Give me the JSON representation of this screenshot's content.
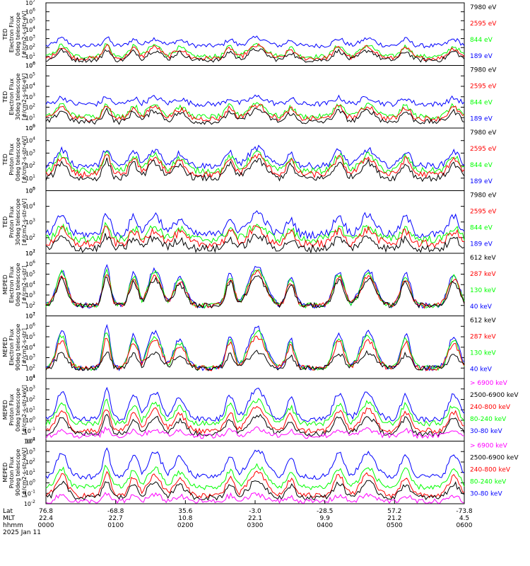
{
  "colors": {
    "black": "#000000",
    "red": "#ff0000",
    "green": "#00ff00",
    "blue": "#0000ff",
    "magenta": "#ff00ff"
  },
  "chart_data": [
    {
      "type": "line",
      "ylabel_lines": [
        "TED",
        "Electron Flux",
        "0deg telescope",
        "[#/cm2-s-str-eV]"
      ],
      "log_range": [
        0,
        7
      ],
      "tick_exponents": [
        0,
        1,
        2,
        3,
        4,
        5,
        6,
        7
      ],
      "legend": [
        {
          "label": "7980 eV",
          "color": "#000000"
        },
        {
          "label": "2595 eV",
          "color": "#ff0000"
        },
        {
          "label": "844 eV",
          "color": "#00ff00"
        },
        {
          "label": "189 eV",
          "color": "#0000ff"
        }
      ],
      "series_levels": [
        {
          "color": "#0000ff",
          "base": 2.2,
          "peak": 3.1
        },
        {
          "color": "#00ff00",
          "base": 1.0,
          "peak": 2.4
        },
        {
          "color": "#ff0000",
          "base": 0.8,
          "peak": 2.2
        },
        {
          "color": "#000000",
          "base": 0.6,
          "peak": 1.8
        }
      ]
    },
    {
      "type": "line",
      "ylabel_lines": [
        "TED",
        "Electron Flux",
        "30deg telescope",
        "[#/cm2-s-str-eV]"
      ],
      "log_range": [
        0,
        6
      ],
      "tick_exponents": [
        0,
        1,
        2,
        3,
        4,
        5,
        6
      ],
      "legend": [
        {
          "label": "7980 eV",
          "color": "#000000"
        },
        {
          "label": "2595 eV",
          "color": "#ff0000"
        },
        {
          "label": "844 eV",
          "color": "#00ff00"
        },
        {
          "label": "189 eV",
          "color": "#0000ff"
        }
      ],
      "series_levels": [
        {
          "color": "#0000ff",
          "base": 2.3,
          "peak": 3.0
        },
        {
          "color": "#00ff00",
          "base": 1.1,
          "peak": 2.4
        },
        {
          "color": "#ff0000",
          "base": 0.9,
          "peak": 2.2
        },
        {
          "color": "#000000",
          "base": 0.6,
          "peak": 1.8
        }
      ]
    },
    {
      "type": "line",
      "ylabel_lines": [
        "TED",
        "Proton Flux",
        "0deg telescope",
        "[#/cm2-s-str-eV]"
      ],
      "log_range": [
        0,
        5
      ],
      "tick_exponents": [
        0,
        1,
        2,
        3,
        4,
        5
      ],
      "legend": [
        {
          "label": "7980 eV",
          "color": "#000000"
        },
        {
          "label": "2595 eV",
          "color": "#ff0000"
        },
        {
          "label": "844 eV",
          "color": "#00ff00"
        },
        {
          "label": "189 eV",
          "color": "#0000ff"
        }
      ],
      "series_levels": [
        {
          "color": "#0000ff",
          "base": 2.0,
          "peak": 3.4
        },
        {
          "color": "#00ff00",
          "base": 1.6,
          "peak": 3.0
        },
        {
          "color": "#ff0000",
          "base": 1.3,
          "peak": 2.8
        },
        {
          "color": "#000000",
          "base": 1.0,
          "peak": 2.4
        }
      ]
    },
    {
      "type": "line",
      "ylabel_lines": [
        "TED",
        "Proton Flux",
        "30deg telescope",
        "[#/cm2-s-str-eV]"
      ],
      "log_range": [
        1,
        5
      ],
      "tick_exponents": [
        1,
        2,
        3,
        4,
        5
      ],
      "legend": [
        {
          "label": "7980 eV",
          "color": "#000000"
        },
        {
          "label": "2595 eV",
          "color": "#ff0000"
        },
        {
          "label": "844 eV",
          "color": "#00ff00"
        },
        {
          "label": "189 eV",
          "color": "#0000ff"
        }
      ],
      "series_levels": [
        {
          "color": "#0000ff",
          "base": 2.2,
          "peak": 3.6
        },
        {
          "color": "#00ff00",
          "base": 1.9,
          "peak": 2.8
        },
        {
          "color": "#ff0000",
          "base": 1.6,
          "peak": 2.6
        },
        {
          "color": "#000000",
          "base": 1.3,
          "peak": 2.1
        }
      ]
    },
    {
      "type": "line",
      "ylabel_lines": [
        "MEPED",
        "Electron Flux",
        "0deg telescope",
        "[#/cm2-s-str]"
      ],
      "log_range": [
        1,
        7
      ],
      "tick_exponents": [
        1,
        2,
        3,
        4,
        5,
        6,
        7
      ],
      "legend": [
        {
          "label": "612 keV",
          "color": "#000000"
        },
        {
          "label": "287 keV",
          "color": "#ff0000"
        },
        {
          "label": "130 keV",
          "color": "#00ff00"
        },
        {
          "label": "40 keV",
          "color": "#0000ff"
        }
      ],
      "series_levels": [
        {
          "color": "#0000ff",
          "base": 2.0,
          "peak": 5.8
        },
        {
          "color": "#00ff00",
          "base": 2.0,
          "peak": 5.5
        },
        {
          "color": "#ff0000",
          "base": 2.0,
          "peak": 5.2
        },
        {
          "color": "#000000",
          "base": 2.0,
          "peak": 4.8
        }
      ]
    },
    {
      "type": "line",
      "ylabel_lines": [
        "MEPED",
        "Electron Flux",
        "90deg telescope",
        "[#/cm2-s-str]"
      ],
      "log_range": [
        1,
        7
      ],
      "tick_exponents": [
        1,
        2,
        3,
        4,
        5,
        6,
        7
      ],
      "legend": [
        {
          "label": "612 keV",
          "color": "#000000"
        },
        {
          "label": "287 keV",
          "color": "#ff0000"
        },
        {
          "label": "130 keV",
          "color": "#00ff00"
        },
        {
          "label": "40 keV",
          "color": "#0000ff"
        }
      ],
      "series_levels": [
        {
          "color": "#0000ff",
          "base": 2.0,
          "peak": 5.9
        },
        {
          "color": "#00ff00",
          "base": 2.0,
          "peak": 5.5
        },
        {
          "color": "#ff0000",
          "base": 2.0,
          "peak": 5.0
        },
        {
          "color": "#000000",
          "base": 2.0,
          "peak": 3.6
        }
      ]
    },
    {
      "type": "line",
      "ylabel_lines": [
        "MEPED",
        "Proton Flux",
        "0deg telescope",
        "[#/cm2-s-str-keV]"
      ],
      "log_range": [
        -2,
        4
      ],
      "tick_exponents": [
        -2,
        -1,
        0,
        1,
        2,
        3,
        4
      ],
      "legend": [
        {
          "label": "> 6900 keV",
          "color": "#ff00ff"
        },
        {
          "label": "2500-6900 keV",
          "color": "#000000"
        },
        {
          "label": "240-800 keV",
          "color": "#ff0000"
        },
        {
          "label": "80-240 keV",
          "color": "#00ff00"
        },
        {
          "label": "30-80 keV",
          "color": "#0000ff"
        }
      ],
      "series_levels": [
        {
          "color": "#0000ff",
          "base": 0.1,
          "peak": 3.0
        },
        {
          "color": "#00ff00",
          "base": -0.3,
          "peak": 1.9
        },
        {
          "color": "#ff0000",
          "base": -1.0,
          "peak": 1.2
        },
        {
          "color": "#000000",
          "base": -1.3,
          "peak": 0.5
        },
        {
          "color": "#ff00ff",
          "base": -1.5,
          "peak": -0.8
        }
      ]
    },
    {
      "type": "line",
      "ylabel_lines": [
        "MEPED",
        "Proton Flux",
        "90deg telescope",
        "[#/cm2-s-str-keV]"
      ],
      "log_range": [
        -2,
        4
      ],
      "tick_exponents": [
        -2,
        -1,
        0,
        1,
        2,
        3,
        4
      ],
      "legend": [
        {
          "label": "> 6900 keV",
          "color": "#ff00ff"
        },
        {
          "label": "2500-6900 keV",
          "color": "#000000"
        },
        {
          "label": "240-800 keV",
          "color": "#ff0000"
        },
        {
          "label": "80-240 keV",
          "color": "#00ff00"
        },
        {
          "label": "30-80 keV",
          "color": "#0000ff"
        }
      ],
      "series_levels": [
        {
          "color": "#0000ff",
          "base": 0.6,
          "peak": 3.2
        },
        {
          "color": "#00ff00",
          "base": -0.4,
          "peak": 1.6
        },
        {
          "color": "#ff0000",
          "base": -1.2,
          "peak": 1.0
        },
        {
          "color": "#000000",
          "base": -1.4,
          "peak": 0.2
        },
        {
          "color": "#ff00ff",
          "base": -1.8,
          "peak": -1.1
        }
      ]
    }
  ],
  "x_axis": {
    "row_labels": [
      "Lat",
      "MLT",
      "hhmm",
      "2025 Jan 11"
    ],
    "ticks": [
      {
        "lat": "76.8",
        "mlt": "22.4",
        "hhmm": "0000"
      },
      {
        "lat": "-68.8",
        "mlt": "22.7",
        "hhmm": "0100"
      },
      {
        "lat": "35.6",
        "mlt": "10.8",
        "hhmm": "0200"
      },
      {
        "lat": "-3.0",
        "mlt": "22.1",
        "hhmm": "0300"
      },
      {
        "lat": "-28.5",
        "mlt": "9.9",
        "hhmm": "0400"
      },
      {
        "lat": "57.2",
        "mlt": "21.2",
        "hhmm": "0500"
      },
      {
        "lat": "-73.8",
        "mlt": "4.5",
        "hhmm": "0600"
      }
    ]
  }
}
